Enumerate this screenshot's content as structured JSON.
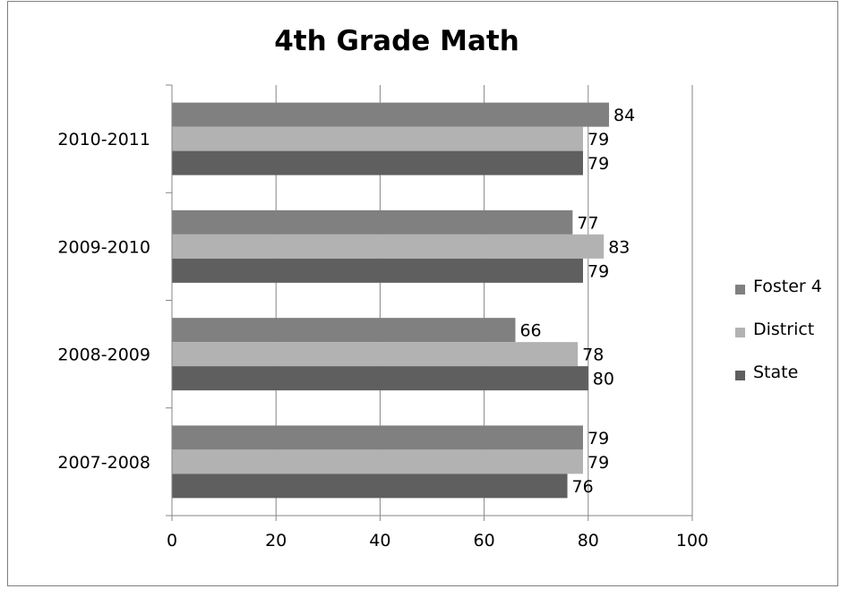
{
  "chart_data": {
    "type": "bar",
    "orientation": "horizontal",
    "title": "4th Grade Math",
    "categories": [
      "2007-2008",
      "2008-2009",
      "2009-2010",
      "2010-2011"
    ],
    "series": [
      {
        "name": "Foster 4",
        "values": [
          79,
          66,
          77,
          84
        ],
        "color": "#808080"
      },
      {
        "name": "District",
        "values": [
          79,
          78,
          83,
          79
        ],
        "color": "#b2b2b2"
      },
      {
        "name": "State",
        "values": [
          76,
          80,
          79,
          79
        ],
        "color": "#5f5f5f"
      }
    ],
    "xlim": [
      0,
      100
    ],
    "xticks": [
      0,
      20,
      40,
      60,
      80,
      100
    ],
    "grid": "vertical",
    "legend": "right",
    "data_labels": true
  }
}
